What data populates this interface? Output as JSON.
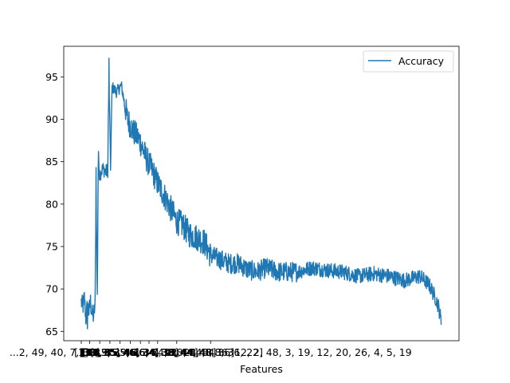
{
  "chart_data": {
    "type": "line",
    "title": "",
    "xlabel": "Features",
    "ylabel": "",
    "ylim": [
      63.9,
      98.6
    ],
    "yticks": [
      65,
      70,
      75,
      80,
      85,
      90,
      95
    ],
    "grid": false,
    "legend": {
      "placement": "top-right",
      "entries": [
        "Accuracy"
      ]
    },
    "x_tick_labels": [
      {
        "index": 0,
        "label": "[1]"
      },
      {
        "index": 27,
        "label": "[33]"
      },
      {
        "index": 60,
        "label": "[33, 35]"
      },
      {
        "index": 93,
        "label": "[33, 35, 46]"
      },
      {
        "index": 126,
        "label": "[33, 35, 46, 34]"
      },
      {
        "index": 159,
        "label": "[33, 35, 46, 34, 38]"
      },
      {
        "index": 192,
        "label": "[33, 35, 46, 34, 38, 44]"
      },
      {
        "index": 220,
        "label": "[33, 35, 46, 34, 38, 44, 48]"
      },
      {
        "index": 248,
        "label": "[33, 35, 46, 34, 38, 44, 48, 36]"
      },
      {
        "index": 310,
        "label": "[33, 35, 46, 34, 38, 44, 48, 36, 22]"
      },
      {
        "index": 420,
        "label": "...2, 49, 40, 7, 39, 9, 39, 36, 7, 22, 28, 3, 36, 12, 2, 48, 3, 19, 12, 20, 26, 4, 5, 19"
      }
    ],
    "series": [
      {
        "name": "Accuracy",
        "color": "#1f77b4",
        "x_range": [
          0,
          1170
        ],
        "anchors": [
          [
            0,
            68.5
          ],
          [
            5,
            67.8
          ],
          [
            10,
            69.0
          ],
          [
            15,
            66.5
          ],
          [
            20,
            68.0
          ],
          [
            25,
            67.3
          ],
          [
            30,
            68.5
          ],
          [
            35,
            67.0
          ],
          [
            40,
            66.8
          ],
          [
            45,
            68.2
          ],
          [
            48,
            82.0
          ],
          [
            52,
            69.0
          ],
          [
            55,
            84.5
          ],
          [
            60,
            83.5
          ],
          [
            70,
            84.2
          ],
          [
            80,
            83.8
          ],
          [
            86,
            84.0
          ],
          [
            90,
            96.5
          ],
          [
            95,
            84.0
          ],
          [
            100,
            93.8
          ],
          [
            115,
            93.2
          ],
          [
            130,
            94.0
          ],
          [
            150,
            90.0
          ],
          [
            170,
            88.5
          ],
          [
            190,
            87.5
          ],
          [
            210,
            85.5
          ],
          [
            230,
            84.0
          ],
          [
            250,
            82.3
          ],
          [
            270,
            81.0
          ],
          [
            290,
            79.5
          ],
          [
            310,
            78.0
          ],
          [
            330,
            77.5
          ],
          [
            350,
            76.5
          ],
          [
            380,
            76.0
          ],
          [
            400,
            75.5
          ],
          [
            420,
            74.0
          ],
          [
            450,
            73.5
          ],
          [
            480,
            73.0
          ],
          [
            510,
            73.0
          ],
          [
            540,
            72.3
          ],
          [
            570,
            72.0
          ],
          [
            600,
            72.5
          ],
          [
            640,
            72.0
          ],
          [
            700,
            72.0
          ],
          [
            750,
            72.5
          ],
          [
            800,
            72.2
          ],
          [
            850,
            72.0
          ],
          [
            900,
            71.5
          ],
          [
            950,
            71.8
          ],
          [
            1000,
            71.5
          ],
          [
            1050,
            71.0
          ],
          [
            1100,
            71.5
          ],
          [
            1130,
            70.5
          ],
          [
            1150,
            69.0
          ],
          [
            1160,
            68.0
          ],
          [
            1170,
            66.0
          ]
        ]
      }
    ]
  }
}
